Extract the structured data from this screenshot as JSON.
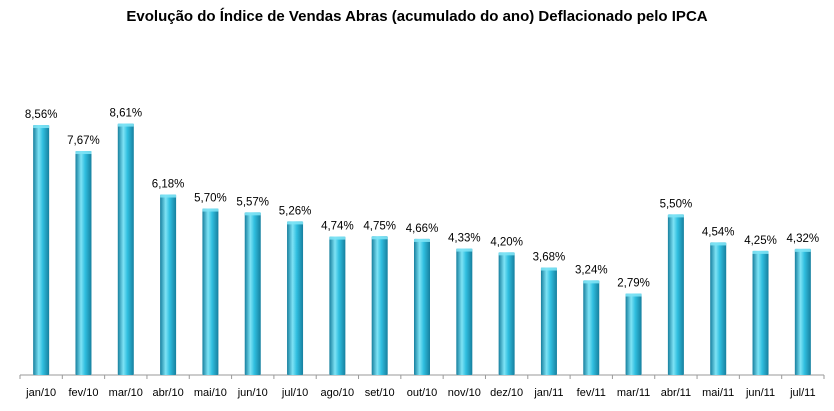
{
  "chart_data": {
    "type": "bar",
    "title": "Evolução do Índice de Vendas Abras (acumulado do ano) Deflacionado pelo IPCA",
    "categories": [
      "jan/10",
      "fev/10",
      "mar/10",
      "abr/10",
      "mai/10",
      "jun/10",
      "jul/10",
      "ago/10",
      "set/10",
      "out/10",
      "nov/10",
      "dez/10",
      "jan/11",
      "fev/11",
      "mar/11",
      "abr/11",
      "mai/11",
      "jun/11",
      "jul/11"
    ],
    "values": [
      8.56,
      7.67,
      8.61,
      6.18,
      5.7,
      5.57,
      5.26,
      4.74,
      4.75,
      4.66,
      4.33,
      4.2,
      3.68,
      3.24,
      2.79,
      5.5,
      4.54,
      4.25,
      4.32
    ],
    "data_labels": [
      "8,56%",
      "7,67%",
      "8,61%",
      "6,18%",
      "5,70%",
      "5,57%",
      "5,26%",
      "4,74%",
      "4,75%",
      "4,66%",
      "4,33%",
      "4,20%",
      "3,68%",
      "3,24%",
      "2,79%",
      "5,50%",
      "4,54%",
      "4,25%",
      "4,32%"
    ],
    "xlabel": "",
    "ylabel": "",
    "ylim": [
      0,
      9
    ],
    "grid": false,
    "legend": "none",
    "colors": {
      "bar_light": "#7ee3f5",
      "bar_mid": "#30bfe0",
      "bar_dark": "#167f9e",
      "axis": "#9a9a9a"
    }
  }
}
